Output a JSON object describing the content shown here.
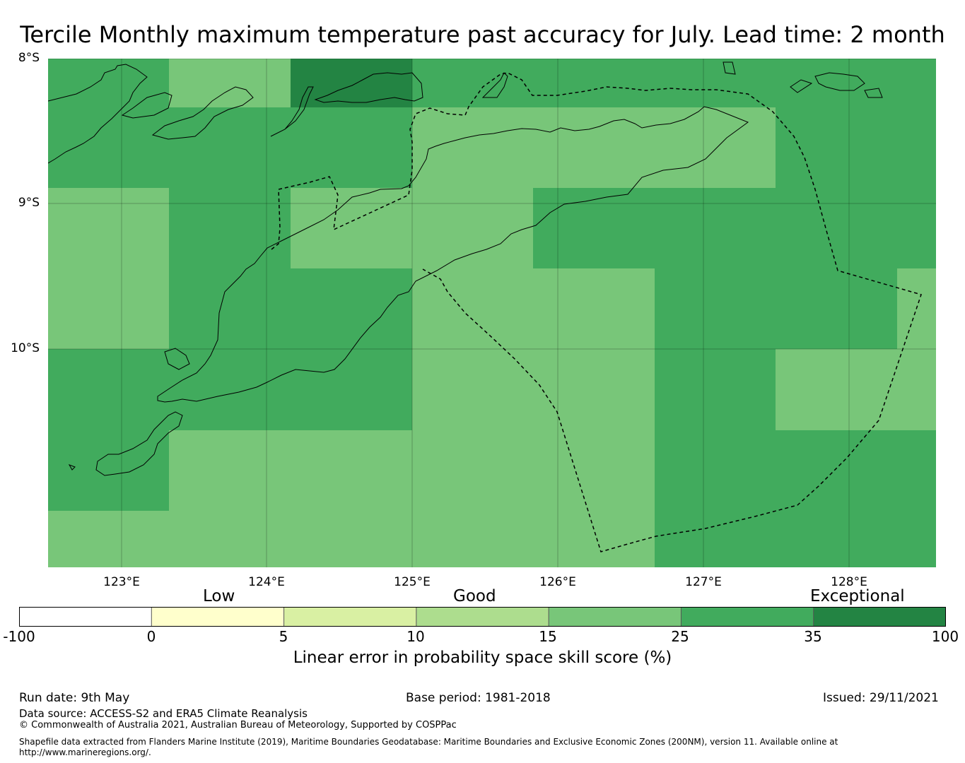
{
  "title": "Tercile Monthly maximum temperature past accuracy for July. Lead time: 2 month",
  "map": {
    "lat_labels": [
      "8°S",
      "9°S",
      "10°S"
    ],
    "lon_labels": [
      "123°E",
      "124°E",
      "125°E",
      "126°E",
      "127°E",
      "128°E"
    ],
    "grid_colors": {
      "good": "#78c679",
      "very_good": "#41ab5d",
      "exceptional": "#238443"
    }
  },
  "legend": {
    "categories": [
      "Low",
      "Good",
      "Exceptional"
    ],
    "ticks": [
      "-100",
      "0",
      "5",
      "10",
      "15",
      "25",
      "35",
      "100"
    ],
    "colors": [
      "#ffffff",
      "#ffffcc",
      "#d9f0a3",
      "#addd8e",
      "#78c679",
      "#41ab5d",
      "#238443"
    ],
    "label": "Linear error in probability space skill score (%)"
  },
  "footer": {
    "run_date": "Run date: 9th May",
    "base_period": "Base period: 1981-2018",
    "issued": "Issued: 29/11/2021",
    "data_source": "Data source: ACCESS-S2 and ERA5 Climate Reanalysis",
    "copyright": "© Commonwealth of Australia 2021, Australian Bureau of Meteorology, Supported by COSPPac",
    "shapefile_line1": "Shapefile data extracted from Flanders Marine Institute (2019), Maritime Boundaries Geodatabase: Maritime Boundaries and Exclusive Economic Zones (200NM), version 11. Available online at",
    "shapefile_line2": "http://www.marineregions.org/."
  }
}
